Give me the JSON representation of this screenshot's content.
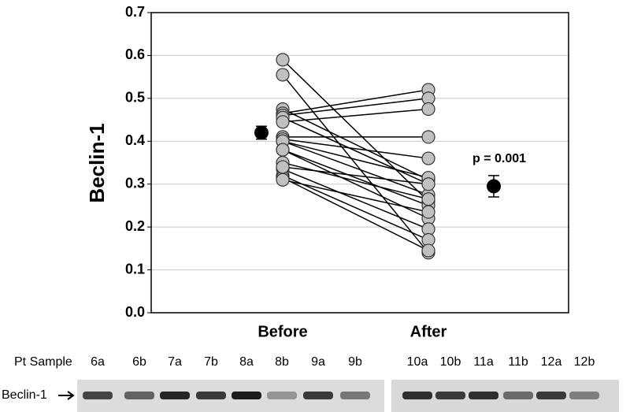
{
  "chart_data": {
    "type": "paired-dot",
    "y_label": "Beclin-1",
    "categories": [
      "Before",
      "After"
    ],
    "pairs": [
      [
        0.59,
        0.26
      ],
      [
        0.555,
        0.14
      ],
      [
        0.475,
        0.31
      ],
      [
        0.465,
        0.52
      ],
      [
        0.46,
        0.5
      ],
      [
        0.455,
        0.3
      ],
      [
        0.445,
        0.475
      ],
      [
        0.41,
        0.41
      ],
      [
        0.405,
        0.36
      ],
      [
        0.4,
        0.275
      ],
      [
        0.4,
        0.315
      ],
      [
        0.38,
        0.25
      ],
      [
        0.38,
        0.22
      ],
      [
        0.35,
        0.265
      ],
      [
        0.335,
        0.195
      ],
      [
        0.32,
        0.17
      ],
      [
        0.315,
        0.145
      ],
      [
        0.34,
        0.3
      ],
      [
        0.31,
        0.235
      ]
    ],
    "means": [
      0.42,
      0.295
    ],
    "errors": [
      0.015,
      0.025
    ],
    "annotation": "p = 0.001",
    "ylim": [
      0,
      0.7
    ],
    "yticks": [
      {
        "value": 0,
        "label": "0.0"
      },
      0.1,
      0.2,
      0.3,
      0.4,
      0.5,
      0.6,
      0.7
    ],
    "grid": true,
    "point_color": "#c0c0c0",
    "mean_color": "#000000"
  },
  "blot": {
    "row_label": "Pt Sample",
    "band_label": "Beclin-1",
    "lanes": [
      "6a",
      "6b",
      "7a",
      "7b",
      "8a",
      "8b",
      "9a",
      "9b",
      "10a",
      "10b",
      "11a",
      "11b",
      "12a",
      "12b"
    ]
  }
}
